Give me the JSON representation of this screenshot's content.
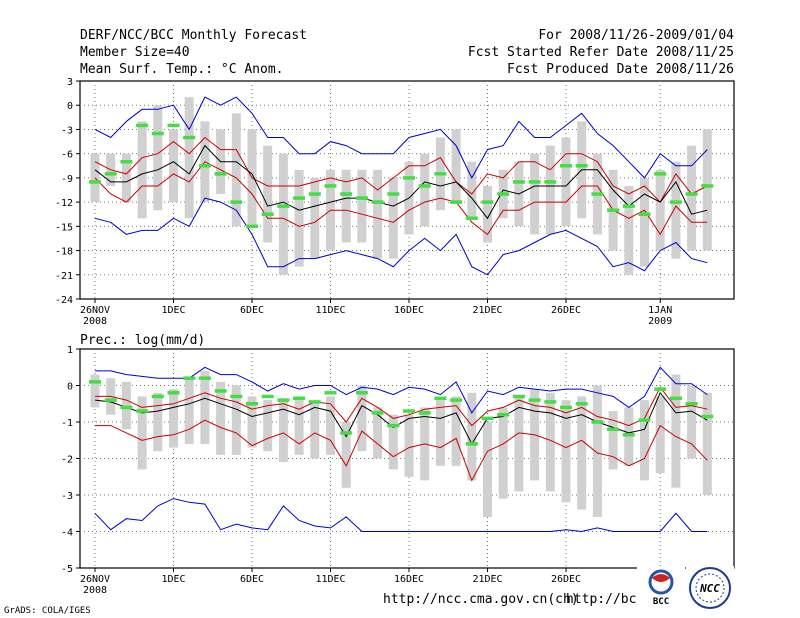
{
  "header": {
    "title": "DERF/NCC/BCC Monthly Forecast",
    "member_size": "Member Size=40",
    "variable": "Mean Surf. Temp.: °C Anom.",
    "period": "For 2008/11/26-2009/01/04",
    "refer_date": "Fcst Started Refer Date 2008/11/25",
    "produced_date": "Fcst Produced Date 2008/11/26"
  },
  "footer": {
    "grads": "GrADS: COLA/IGES",
    "url1": "http://ncc.cma.gov.cn(ch)",
    "url2": "http://bcc.c",
    "logo_bcc": "BCC",
    "logo_ncc": "NCC"
  },
  "x_ticks": [
    {
      "day": 0,
      "label": "26NOV",
      "sub": "2008"
    },
    {
      "day": 5,
      "label": "1DEC"
    },
    {
      "day": 10,
      "label": "6DEC"
    },
    {
      "day": 15,
      "label": "11DEC"
    },
    {
      "day": 20,
      "label": "16DEC"
    },
    {
      "day": 25,
      "label": "21DEC"
    },
    {
      "day": 30,
      "label": "26DEC"
    },
    {
      "day": 36,
      "label": "1JAN",
      "sub": "2009"
    }
  ],
  "chart_data": [
    {
      "type": "line",
      "title": "Mean Surf. Temp.: °C Anom.",
      "xlabel": "",
      "ylabel": "",
      "ylim": [
        -24,
        3
      ],
      "yticks": [
        3,
        0,
        -3,
        -6,
        -9,
        -12,
        -15,
        -18,
        -21,
        -24
      ],
      "ytick_labels": [
        "3",
        "0",
        "-3",
        "-6",
        "-9",
        "-12",
        "-15",
        "-18",
        "-21",
        "-24"
      ],
      "x_days": 40,
      "boxes": [
        [
          -12,
          -6
        ],
        [
          -10,
          -6
        ],
        [
          -12,
          -6
        ],
        [
          -14,
          -2
        ],
        [
          -13,
          0
        ],
        [
          -12,
          -3
        ],
        [
          -14,
          1
        ],
        [
          -12,
          -2
        ],
        [
          -11,
          -3
        ],
        [
          -15,
          -1
        ],
        [
          -15,
          -3
        ],
        [
          -17,
          -5
        ],
        [
          -21,
          -6
        ],
        [
          -20,
          -8
        ],
        [
          -19,
          -9
        ],
        [
          -18,
          -8
        ],
        [
          -17,
          -8
        ],
        [
          -17,
          -8
        ],
        [
          -19,
          -8
        ],
        [
          -19,
          -9
        ],
        [
          -16,
          -7
        ],
        [
          -15,
          -6
        ],
        [
          -13,
          -4
        ],
        [
          -12,
          -3
        ],
        [
          -14,
          -7
        ],
        [
          -17,
          -10
        ],
        [
          -14,
          -8
        ],
        [
          -15,
          -7
        ],
        [
          -16,
          -6
        ],
        [
          -16,
          -5
        ],
        [
          -15,
          -4
        ],
        [
          -14,
          -2
        ],
        [
          -16,
          -6
        ],
        [
          -18,
          -8
        ],
        [
          -21,
          -10
        ],
        [
          -20,
          -9
        ],
        [
          -18,
          -8
        ],
        [
          -19,
          -7
        ],
        [
          -18,
          -5
        ],
        [
          -18,
          -3
        ]
      ],
      "series": [
        {
          "name": "max",
          "color": "#0000cc",
          "values": [
            -3,
            -4,
            -2,
            -0.5,
            -0.5,
            0,
            -3,
            1,
            0,
            1,
            -1,
            -4,
            -4,
            -6,
            -6,
            -4.5,
            -5,
            -6,
            -6,
            -6,
            -4,
            -3.5,
            -3,
            -5,
            -9,
            -5.5,
            -5,
            -2,
            -4,
            -4,
            -2.5,
            -1,
            -3.5,
            -5,
            -7,
            -9,
            -6,
            -7.5,
            -7.5,
            -5.5
          ]
        },
        {
          "name": "mean+sd",
          "color": "#cc0000",
          "values": [
            -7,
            -8,
            -8.5,
            -6.5,
            -6,
            -4.5,
            -6,
            -4,
            -5.5,
            -5.5,
            -9,
            -10,
            -10,
            -10,
            -9.5,
            -9,
            -9.5,
            -9,
            -10.5,
            -9,
            -7.5,
            -7.5,
            -6.5,
            -9.5,
            -11,
            -8.5,
            -9,
            -7,
            -7,
            -8,
            -6,
            -6,
            -7,
            -10,
            -11,
            -10,
            -12,
            -8.5,
            -11,
            -10
          ]
        },
        {
          "name": "mean",
          "color": "#000000",
          "values": [
            -8,
            -9.5,
            -9.5,
            -8.5,
            -8,
            -7,
            -8.5,
            -5,
            -7,
            -7,
            -8.5,
            -12.5,
            -12,
            -13,
            -12.5,
            -12,
            -11.5,
            -11.5,
            -12,
            -12.5,
            -11.5,
            -9.5,
            -10,
            -9.5,
            -11.5,
            -14,
            -10.5,
            -11,
            -10,
            -10,
            -10,
            -8,
            -8,
            -10.5,
            -12.5,
            -11,
            -12,
            -9.5,
            -13.5,
            -13
          ]
        },
        {
          "name": "mean-sd",
          "color": "#cc0000",
          "values": [
            -9,
            -11,
            -12,
            -10,
            -10,
            -8.5,
            -9.5,
            -7,
            -8,
            -9,
            -11,
            -14,
            -14,
            -15,
            -14.5,
            -13,
            -13,
            -13.5,
            -14,
            -14.5,
            -13,
            -12,
            -11.5,
            -12,
            -14.5,
            -16,
            -13,
            -13,
            -12,
            -12,
            -12,
            -10,
            -10,
            -13,
            -14,
            -13,
            -16,
            -12.5,
            -14.5,
            -14.5
          ]
        },
        {
          "name": "min",
          "color": "#0000cc",
          "values": [
            -14,
            -14.5,
            -16,
            -15.5,
            -15.5,
            -14,
            -15,
            -11.5,
            -12,
            -13,
            -16,
            -20,
            -20,
            -19,
            -19,
            -18.5,
            -18,
            -18.5,
            -19,
            -20,
            -18,
            -16.5,
            -18,
            -16,
            -20,
            -21,
            -18.5,
            -18,
            -17,
            -16,
            -15.5,
            -16.5,
            -17.5,
            -20,
            -19.5,
            -20.5,
            -18,
            -17,
            -19,
            -19.5
          ]
        },
        {
          "name": "ensemble",
          "color": "#44dd44",
          "values": [
            -9.5,
            -8.5,
            -7,
            -2.5,
            -3.5,
            -2.5,
            -4,
            -7.5,
            -8.5,
            -12,
            -15,
            -13.5,
            -12.5,
            -11.5,
            -11,
            -10,
            -11,
            -11.5,
            -12,
            -11,
            -9,
            -10,
            -8.5,
            -12,
            -14,
            -12,
            -11,
            -9.5,
            -9.5,
            -9.5,
            -7.5,
            -7.5,
            -11,
            -13,
            -12.5,
            -13.5,
            -8.5,
            -12,
            -11,
            -10
          ]
        }
      ]
    },
    {
      "type": "line",
      "title": "Prec.: log(mm/d)",
      "xlabel": "",
      "ylabel": "",
      "ylim": [
        -5,
        1
      ],
      "yticks": [
        1,
        0,
        -1,
        -2,
        -3,
        -4,
        -5
      ],
      "ytick_labels": [
        "1",
        "0",
        "-1",
        "-2",
        "-3",
        "-4",
        "-5"
      ],
      "x_days": 40,
      "boxes": [
        [
          -0.6,
          0.3
        ],
        [
          -0.8,
          0.2
        ],
        [
          -1.2,
          0.1
        ],
        [
          -2.3,
          -0.3
        ],
        [
          -1.8,
          -0.2
        ],
        [
          -1.7,
          -0.1
        ],
        [
          -1.6,
          0.2
        ],
        [
          -1.6,
          0.4
        ],
        [
          -1.9,
          0.1
        ],
        [
          -1.9,
          0
        ],
        [
          -1.7,
          -0.3
        ],
        [
          -1.8,
          -0.4
        ],
        [
          -2.1,
          -0.4
        ],
        [
          -1.9,
          -0.4
        ],
        [
          -2,
          -0.5
        ],
        [
          -1.9,
          -0.3
        ],
        [
          -2.8,
          -1
        ],
        [
          -1.8,
          0
        ],
        [
          -2,
          -0.6
        ],
        [
          -2.3,
          -0.8
        ],
        [
          -2.5,
          -0.8
        ],
        [
          -2.6,
          -0.6
        ],
        [
          -2.2,
          -0.4
        ],
        [
          -2.2,
          -0.3
        ],
        [
          -2.6,
          -0.2
        ],
        [
          -3.6,
          -1
        ],
        [
          -3.1,
          -0.6
        ],
        [
          -2.9,
          -0.3
        ],
        [
          -2.6,
          -0.1
        ],
        [
          -2.9,
          -0.2
        ],
        [
          -3.2,
          -0.4
        ],
        [
          -3.4,
          -0.3
        ],
        [
          -3.6,
          0
        ],
        [
          -2.3,
          -0.7
        ],
        [
          -2.2,
          -0.6
        ],
        [
          -2.6,
          -0.4
        ],
        [
          -2.4,
          -0.3
        ],
        [
          -2.8,
          0.3
        ],
        [
          -2,
          0
        ],
        [
          -3,
          -0.2
        ]
      ],
      "series": [
        {
          "name": "max",
          "color": "#0000cc",
          "values": [
            0.4,
            0.4,
            0.3,
            0.25,
            0.2,
            0.2,
            0.2,
            0.5,
            0.3,
            0.3,
            0.1,
            -0.15,
            0.05,
            -0.1,
            0,
            0,
            -0.25,
            -0.05,
            -0.1,
            -0.25,
            -0.05,
            -0.1,
            -0.25,
            0.1,
            -0.75,
            -0.15,
            -0.25,
            -0.05,
            -0.1,
            -0.15,
            -0.1,
            -0.1,
            -0.2,
            -0.3,
            -0.6,
            -0.3,
            0.5,
            0.05,
            0.05,
            -0.25
          ]
        },
        {
          "name": "mean+sd",
          "color": "#cc0000",
          "values": [
            -0.3,
            -0.3,
            -0.4,
            -0.6,
            -0.55,
            -0.5,
            -0.35,
            -0.2,
            -0.35,
            -0.45,
            -0.65,
            -0.55,
            -0.5,
            -0.65,
            -0.45,
            -0.5,
            -1,
            -0.35,
            -0.6,
            -0.9,
            -0.8,
            -0.65,
            -0.6,
            -0.55,
            -1.1,
            -0.7,
            -0.6,
            -0.4,
            -0.55,
            -0.6,
            -0.75,
            -0.6,
            -0.85,
            -0.95,
            -1.1,
            -0.9,
            -0.05,
            -0.6,
            -0.55,
            -0.65
          ]
        },
        {
          "name": "mean",
          "color": "#000000",
          "values": [
            -0.4,
            -0.45,
            -0.6,
            -0.75,
            -0.7,
            -0.6,
            -0.5,
            -0.35,
            -0.5,
            -0.65,
            -0.85,
            -0.75,
            -0.65,
            -0.8,
            -0.6,
            -0.7,
            -1.4,
            -0.55,
            -0.8,
            -1.15,
            -0.9,
            -0.85,
            -0.9,
            -0.75,
            -1.6,
            -0.9,
            -0.85,
            -0.6,
            -0.7,
            -0.75,
            -0.9,
            -0.8,
            -1,
            -1.15,
            -1.3,
            -1.2,
            -0.2,
            -0.75,
            -0.7,
            -0.95
          ]
        },
        {
          "name": "mean-sd",
          "color": "#cc0000",
          "values": [
            -1.1,
            -1.1,
            -1.3,
            -1.5,
            -1.4,
            -1.35,
            -1.2,
            -0.95,
            -1.15,
            -1.3,
            -1.65,
            -1.45,
            -1.3,
            -1.6,
            -1.3,
            -1.5,
            -2.2,
            -1.25,
            -1.6,
            -1.95,
            -1.7,
            -1.6,
            -1.7,
            -1.45,
            -2.6,
            -1.8,
            -1.6,
            -1.3,
            -1.35,
            -1.5,
            -1.7,
            -1.5,
            -1.85,
            -1.95,
            -2.2,
            -2,
            -1.1,
            -1.4,
            -1.6,
            -2.05
          ]
        },
        {
          "name": "min",
          "color": "#0000cc",
          "values": [
            -3.5,
            -3.95,
            -3.65,
            -3.7,
            -3.3,
            -3.1,
            -3.2,
            -3.25,
            -3.95,
            -3.8,
            -3.9,
            -3.95,
            -3.3,
            -3.7,
            -3.85,
            -3.9,
            -3.6,
            -4,
            -4,
            -4,
            -4,
            -4,
            -4,
            -4,
            -4,
            -4,
            -4,
            -4,
            -4,
            -4,
            -3.95,
            -4,
            -3.9,
            -4,
            -4,
            -4,
            -4,
            -3.5,
            -4,
            -4
          ]
        },
        {
          "name": "ensemble",
          "color": "#44dd44",
          "values": [
            0.1,
            -0.4,
            -0.6,
            -0.7,
            -0.3,
            -0.2,
            0.2,
            0.2,
            -0.15,
            -0.3,
            -0.5,
            -0.3,
            -0.4,
            -0.35,
            -0.45,
            -0.2,
            -1.3,
            -0.2,
            -0.75,
            -1.1,
            -0.7,
            -0.75,
            -0.35,
            -0.4,
            -1.6,
            -0.9,
            -0.8,
            -0.3,
            -0.4,
            -0.45,
            -0.6,
            -0.5,
            -1,
            -1.2,
            -1.35,
            -0.95,
            -0.1,
            -0.35,
            -0.5,
            -0.85
          ]
        }
      ]
    }
  ]
}
